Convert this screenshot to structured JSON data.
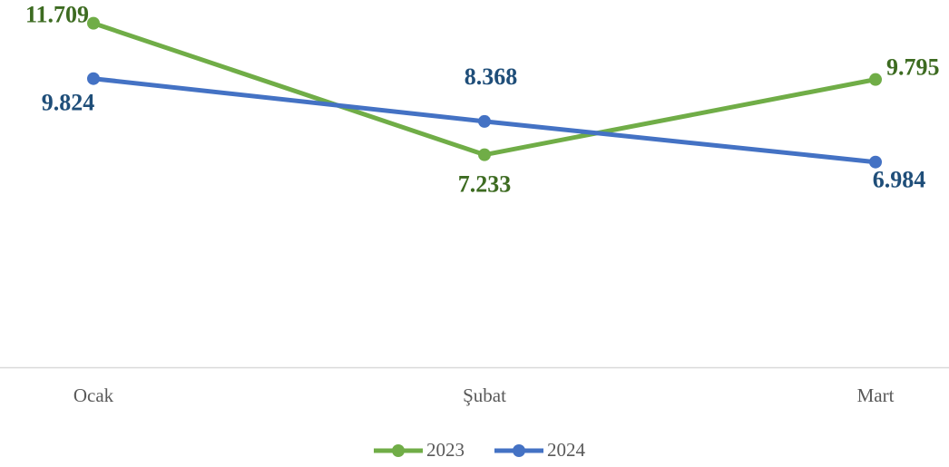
{
  "chart_data": {
    "type": "line",
    "categories": [
      "Ocak",
      "Şubat",
      "Mart"
    ],
    "series": [
      {
        "name": "2023",
        "color": "#70ad47",
        "label_color": "#3d6b21",
        "values": [
          11709,
          7233,
          9795
        ],
        "value_labels": [
          "11.709",
          "7.233",
          "9.795"
        ]
      },
      {
        "name": "2024",
        "color": "#4472c4",
        "label_color": "#1f4e79",
        "values": [
          9824,
          8368,
          6984
        ],
        "value_labels": [
          "9.824",
          "8.368",
          "6.984"
        ]
      }
    ],
    "ylim": [
      0,
      12500
    ],
    "legend": "bottom"
  }
}
